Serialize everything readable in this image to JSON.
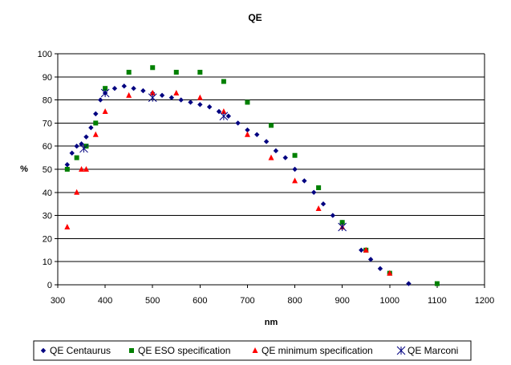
{
  "chart_data": {
    "type": "scatter",
    "title": "QE",
    "xlabel": "nm",
    "ylabel": "%",
    "xlim": [
      300,
      1200
    ],
    "ylim": [
      0,
      100
    ],
    "x_ticks": [
      300,
      400,
      500,
      600,
      700,
      800,
      900,
      1000,
      1100,
      1200
    ],
    "y_ticks": [
      0,
      10,
      20,
      30,
      40,
      50,
      60,
      70,
      80,
      90,
      100
    ],
    "grid": "horizontal",
    "legend_position": "bottom",
    "series": [
      {
        "name": "QE Centaurus",
        "marker": "diamond",
        "color": "#000080",
        "points": [
          [
            320,
            52
          ],
          [
            330,
            57
          ],
          [
            340,
            60
          ],
          [
            350,
            61
          ],
          [
            360,
            64
          ],
          [
            370,
            68
          ],
          [
            380,
            74
          ],
          [
            390,
            80
          ],
          [
            400,
            83
          ],
          [
            420,
            85
          ],
          [
            440,
            86
          ],
          [
            460,
            85
          ],
          [
            480,
            84
          ],
          [
            500,
            83
          ],
          [
            520,
            82
          ],
          [
            540,
            81
          ],
          [
            560,
            80
          ],
          [
            580,
            79
          ],
          [
            600,
            78
          ],
          [
            620,
            77
          ],
          [
            640,
            75
          ],
          [
            660,
            73
          ],
          [
            680,
            70
          ],
          [
            700,
            67
          ],
          [
            720,
            65
          ],
          [
            740,
            62
          ],
          [
            760,
            58
          ],
          [
            780,
            55
          ],
          [
            800,
            50
          ],
          [
            820,
            45
          ],
          [
            840,
            40
          ],
          [
            860,
            35
          ],
          [
            880,
            30
          ],
          [
            900,
            27
          ],
          [
            940,
            15
          ],
          [
            960,
            11
          ],
          [
            980,
            7
          ],
          [
            1000,
            5
          ],
          [
            1040,
            0.5
          ]
        ]
      },
      {
        "name": "QE ESO specification",
        "marker": "square",
        "color": "#008000",
        "points": [
          [
            320,
            50
          ],
          [
            340,
            55
          ],
          [
            360,
            60
          ],
          [
            380,
            70
          ],
          [
            400,
            85
          ],
          [
            450,
            92
          ],
          [
            500,
            94
          ],
          [
            550,
            92
          ],
          [
            600,
            92
          ],
          [
            650,
            88
          ],
          [
            700,
            79
          ],
          [
            750,
            69
          ],
          [
            800,
            56
          ],
          [
            850,
            42
          ],
          [
            900,
            27
          ],
          [
            950,
            15
          ],
          [
            1000,
            5
          ],
          [
            1100,
            0.5
          ]
        ]
      },
      {
        "name": "QE minimum specification",
        "marker": "triangle",
        "color": "#ff0000",
        "points": [
          [
            320,
            25
          ],
          [
            340,
            40
          ],
          [
            350,
            50
          ],
          [
            360,
            50
          ],
          [
            380,
            65
          ],
          [
            400,
            75
          ],
          [
            450,
            82
          ],
          [
            500,
            83
          ],
          [
            550,
            83
          ],
          [
            600,
            81
          ],
          [
            650,
            75
          ],
          [
            700,
            65
          ],
          [
            750,
            55
          ],
          [
            800,
            45
          ],
          [
            850,
            33
          ],
          [
            900,
            25
          ],
          [
            950,
            15
          ],
          [
            1000,
            5
          ]
        ]
      },
      {
        "name": "QE Marconi",
        "marker": "asterisk",
        "color": "#000080",
        "points": [
          [
            355,
            59
          ],
          [
            400,
            83
          ],
          [
            500,
            81
          ],
          [
            650,
            73
          ],
          [
            900,
            25
          ]
        ]
      }
    ]
  }
}
